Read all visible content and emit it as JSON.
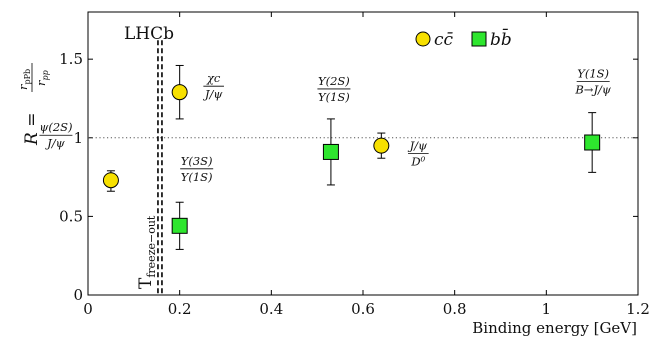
{
  "chart_data": {
    "type": "scatter",
    "title": "",
    "tag": "LHCb",
    "xlabel": "Binding energy [GeV]",
    "ylabel": "R = r_pPb / r_pp",
    "ylabel_parts": {
      "lhs": "R =",
      "num": "r",
      "num_sub": "pPb",
      "den": "r",
      "den_sub": "pp"
    },
    "xlim": [
      0,
      1.2
    ],
    "ylim": [
      0,
      1.8
    ],
    "xticks": [
      0,
      0.2,
      0.4,
      0.6,
      0.8,
      1,
      1.2
    ],
    "xtick_labels": [
      "0",
      "0.2",
      "0.4",
      "0.6",
      "0.8",
      "1",
      "1.2"
    ],
    "yticks": [
      0,
      0.5,
      1,
      1.5
    ],
    "ytick_labels": [
      "0",
      "0.5",
      "1",
      "1.5"
    ],
    "reference_line": {
      "y": 1,
      "style": "dotted"
    },
    "freeze_out": {
      "x": 0.157,
      "label": "T",
      "label_sub": "freeze−out",
      "style": "double-dashed"
    },
    "legend": {
      "position": "top-center",
      "entries": [
        {
          "label": "cc̄",
          "marker": "circle",
          "color": "#f7e000"
        },
        {
          "label": "bb̄",
          "marker": "square",
          "color": "#2ee62e"
        }
      ]
    },
    "series": [
      {
        "name": "cc̄",
        "marker": "circle",
        "color": "#f7e000",
        "points": [
          {
            "x": 0.05,
            "y": 0.73,
            "yerr_low": 0.07,
            "yerr_high": 0.06,
            "label_num": "ψ(2S)",
            "label_den": "J/ψ"
          },
          {
            "x": 0.2,
            "y": 1.29,
            "yerr_low": 0.17,
            "yerr_high": 0.17,
            "label_num": "χc",
            "label_den": "J/ψ"
          },
          {
            "x": 0.64,
            "y": 0.95,
            "yerr_low": 0.08,
            "yerr_high": 0.08,
            "label_num": "J/ψ",
            "label_den": "D⁰"
          }
        ]
      },
      {
        "name": "bb̄",
        "marker": "square",
        "color": "#2ee62e",
        "points": [
          {
            "x": 0.2,
            "y": 0.44,
            "yerr_low": 0.15,
            "yerr_high": 0.15,
            "label_num": "Υ(3S)",
            "label_den": "Υ(1S)"
          },
          {
            "x": 0.53,
            "y": 0.91,
            "yerr_low": 0.21,
            "yerr_high": 0.21,
            "label_num": "Υ(2S)",
            "label_den": "Υ(1S)"
          },
          {
            "x": 1.1,
            "y": 0.97,
            "yerr_low": 0.19,
            "yerr_high": 0.19,
            "label_num": "Υ(1S)",
            "label_den": "B→J/ψ"
          }
        ]
      }
    ]
  }
}
